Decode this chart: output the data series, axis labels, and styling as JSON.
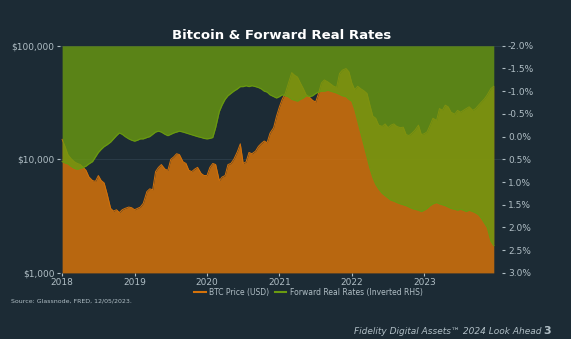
{
  "title": "Bitcoin & Forward Real Rates",
  "title_color": "#ffffff",
  "title_fontsize": 9.5,
  "background_color": "#1c2b35",
  "plot_bg_color": "#1c2b35",
  "grid_color": "#3a4d5a",
  "tick_color": "#b0bec5",
  "btc_color": "#d4720a",
  "rates_color": "#6a9a10",
  "source_text": "Source: Glassnode, FRED, 12/05/2023.",
  "footer_text": "Fidelity Digital Assets™ 2024 Look Ahead",
  "footer_number": "3",
  "legend_btc": "BTC Price (USD)",
  "legend_rates": "Forward Real Rates (Inverted RHS)",
  "btc_ylim_log": [
    1000,
    100000
  ],
  "rates_ylim": [
    3.0,
    -2.0
  ],
  "rates_yticks": [
    -2.0,
    -1.5,
    -1.0,
    -0.5,
    0.0,
    0.5,
    1.0,
    1.5,
    2.0,
    2.5,
    3.0
  ],
  "btc_yticks_log": [
    1000,
    10000,
    100000
  ],
  "btc_dates": [
    2018.0,
    2018.04,
    2018.08,
    2018.12,
    2018.17,
    2018.21,
    2018.25,
    2018.29,
    2018.33,
    2018.37,
    2018.42,
    2018.46,
    2018.5,
    2018.54,
    2018.58,
    2018.62,
    2018.67,
    2018.71,
    2018.75,
    2018.79,
    2018.83,
    2018.87,
    2018.92,
    2018.96,
    2019.0,
    2019.04,
    2019.08,
    2019.12,
    2019.17,
    2019.21,
    2019.25,
    2019.29,
    2019.33,
    2019.37,
    2019.42,
    2019.46,
    2019.5,
    2019.54,
    2019.58,
    2019.62,
    2019.67,
    2019.71,
    2019.75,
    2019.79,
    2019.83,
    2019.87,
    2019.92,
    2019.96,
    2020.0,
    2020.04,
    2020.08,
    2020.12,
    2020.17,
    2020.21,
    2020.25,
    2020.29,
    2020.33,
    2020.37,
    2020.42,
    2020.46,
    2020.5,
    2020.54,
    2020.58,
    2020.62,
    2020.67,
    2020.71,
    2020.75,
    2020.79,
    2020.83,
    2020.87,
    2020.92,
    2020.96,
    2021.0,
    2021.04,
    2021.08,
    2021.12,
    2021.17,
    2021.21,
    2021.25,
    2021.29,
    2021.33,
    2021.37,
    2021.42,
    2021.46,
    2021.5,
    2021.54,
    2021.58,
    2021.62,
    2021.67,
    2021.71,
    2021.75,
    2021.79,
    2021.83,
    2021.87,
    2021.92,
    2021.96,
    2022.0,
    2022.04,
    2022.08,
    2022.12,
    2022.17,
    2022.21,
    2022.25,
    2022.29,
    2022.33,
    2022.37,
    2022.42,
    2022.46,
    2022.5,
    2022.54,
    2022.58,
    2022.62,
    2022.67,
    2022.71,
    2022.75,
    2022.79,
    2022.83,
    2022.87,
    2022.92,
    2022.96,
    2023.0,
    2023.04,
    2023.08,
    2023.12,
    2023.17,
    2023.21,
    2023.25,
    2023.29,
    2023.33,
    2023.37,
    2023.42,
    2023.46,
    2023.5,
    2023.54,
    2023.58,
    2023.62,
    2023.67,
    2023.71,
    2023.75,
    2023.79,
    2023.83,
    2023.87,
    2023.92,
    2023.96
  ],
  "btc_prices": [
    15000,
    13000,
    11000,
    10200,
    9500,
    9200,
    9000,
    8500,
    8000,
    7000,
    6500,
    6400,
    7200,
    6500,
    6200,
    5000,
    3700,
    3500,
    3600,
    3400,
    3600,
    3700,
    3800,
    3750,
    3600,
    3700,
    3800,
    4100,
    5200,
    5500,
    5400,
    7800,
    8500,
    9000,
    8200,
    8000,
    10000,
    10500,
    11200,
    11000,
    9500,
    9200,
    8000,
    7800,
    8200,
    8500,
    7500,
    7200,
    7200,
    8500,
    9200,
    9000,
    6500,
    7000,
    7200,
    9000,
    9200,
    10000,
    11700,
    13700,
    9200,
    9500,
    11500,
    11200,
    11800,
    13000,
    13800,
    14500,
    14000,
    17000,
    19000,
    24000,
    29000,
    34000,
    38000,
    46000,
    58000,
    55000,
    53000,
    47000,
    42000,
    37000,
    35000,
    33000,
    32000,
    38000,
    47000,
    50000,
    48000,
    46000,
    44000,
    43000,
    57000,
    61000,
    63000,
    59000,
    47000,
    41000,
    44000,
    42000,
    40000,
    38000,
    30000,
    24000,
    23000,
    20000,
    19500,
    20500,
    19000,
    20000,
    20500,
    19500,
    19000,
    19200,
    16500,
    16200,
    17000,
    18000,
    20000,
    16500,
    16800,
    17500,
    20000,
    23000,
    22000,
    28000,
    27000,
    30000,
    29000,
    26000,
    25000,
    27000,
    26000,
    27000,
    28000,
    29000,
    27000,
    28000,
    30000,
    32000,
    34000,
    37000,
    42000,
    44000
  ],
  "rates_dates": [
    2018.0,
    2018.04,
    2018.08,
    2018.12,
    2018.17,
    2018.21,
    2018.25,
    2018.29,
    2018.33,
    2018.37,
    2018.42,
    2018.46,
    2018.5,
    2018.54,
    2018.58,
    2018.62,
    2018.67,
    2018.71,
    2018.75,
    2018.79,
    2018.83,
    2018.87,
    2018.92,
    2018.96,
    2019.0,
    2019.04,
    2019.08,
    2019.12,
    2019.17,
    2019.21,
    2019.25,
    2019.29,
    2019.33,
    2019.37,
    2019.42,
    2019.46,
    2019.5,
    2019.54,
    2019.58,
    2019.62,
    2019.67,
    2019.71,
    2019.75,
    2019.79,
    2019.83,
    2019.87,
    2019.92,
    2019.96,
    2020.0,
    2020.04,
    2020.08,
    2020.12,
    2020.17,
    2020.21,
    2020.25,
    2020.29,
    2020.33,
    2020.37,
    2020.42,
    2020.46,
    2020.5,
    2020.54,
    2020.58,
    2020.62,
    2020.67,
    2020.71,
    2020.75,
    2020.79,
    2020.83,
    2020.87,
    2020.92,
    2020.96,
    2021.0,
    2021.04,
    2021.08,
    2021.12,
    2021.17,
    2021.21,
    2021.25,
    2021.29,
    2021.33,
    2021.37,
    2021.42,
    2021.46,
    2021.5,
    2021.54,
    2021.58,
    2021.62,
    2021.67,
    2021.71,
    2021.75,
    2021.79,
    2021.83,
    2021.87,
    2021.92,
    2021.96,
    2022.0,
    2022.04,
    2022.08,
    2022.12,
    2022.17,
    2022.21,
    2022.25,
    2022.29,
    2022.33,
    2022.37,
    2022.42,
    2022.46,
    2022.5,
    2022.54,
    2022.58,
    2022.62,
    2022.67,
    2022.71,
    2022.75,
    2022.79,
    2022.83,
    2022.87,
    2022.92,
    2022.96,
    2023.0,
    2023.04,
    2023.08,
    2023.12,
    2023.17,
    2023.21,
    2023.25,
    2023.29,
    2023.33,
    2023.37,
    2023.42,
    2023.46,
    2023.5,
    2023.54,
    2023.58,
    2023.62,
    2023.67,
    2023.71,
    2023.75,
    2023.79,
    2023.83,
    2023.87,
    2023.92,
    2023.96
  ],
  "rates_values": [
    0.55,
    0.58,
    0.6,
    0.65,
    0.7,
    0.72,
    0.7,
    0.68,
    0.65,
    0.6,
    0.55,
    0.45,
    0.35,
    0.28,
    0.22,
    0.18,
    0.12,
    0.05,
    -0.02,
    -0.08,
    -0.05,
    0.0,
    0.05,
    0.08,
    0.1,
    0.08,
    0.05,
    0.05,
    0.02,
    0.0,
    -0.05,
    -0.1,
    -0.12,
    -0.1,
    -0.05,
    -0.02,
    -0.05,
    -0.08,
    -0.1,
    -0.12,
    -0.1,
    -0.08,
    -0.06,
    -0.04,
    -0.02,
    0.0,
    0.02,
    0.04,
    0.05,
    0.04,
    0.02,
    -0.2,
    -0.55,
    -0.7,
    -0.82,
    -0.9,
    -0.95,
    -1.0,
    -1.05,
    -1.1,
    -1.1,
    -1.12,
    -1.1,
    -1.12,
    -1.1,
    -1.08,
    -1.05,
    -1.0,
    -0.98,
    -0.92,
    -0.88,
    -0.85,
    -0.88,
    -0.92,
    -0.9,
    -0.88,
    -0.82,
    -0.8,
    -0.78,
    -0.82,
    -0.85,
    -0.9,
    -0.88,
    -0.9,
    -0.95,
    -0.98,
    -1.0,
    -1.0,
    -1.02,
    -1.0,
    -0.98,
    -0.96,
    -0.93,
    -0.9,
    -0.88,
    -0.82,
    -0.78,
    -0.6,
    -0.35,
    -0.1,
    0.2,
    0.45,
    0.7,
    0.9,
    1.05,
    1.15,
    1.25,
    1.3,
    1.35,
    1.4,
    1.42,
    1.45,
    1.48,
    1.5,
    1.52,
    1.55,
    1.58,
    1.6,
    1.62,
    1.65,
    1.62,
    1.58,
    1.52,
    1.48,
    1.45,
    1.48,
    1.5,
    1.52,
    1.55,
    1.58,
    1.6,
    1.62,
    1.6,
    1.62,
    1.65,
    1.62,
    1.65,
    1.68,
    1.72,
    1.8,
    1.9,
    2.0,
    2.3,
    2.4
  ]
}
